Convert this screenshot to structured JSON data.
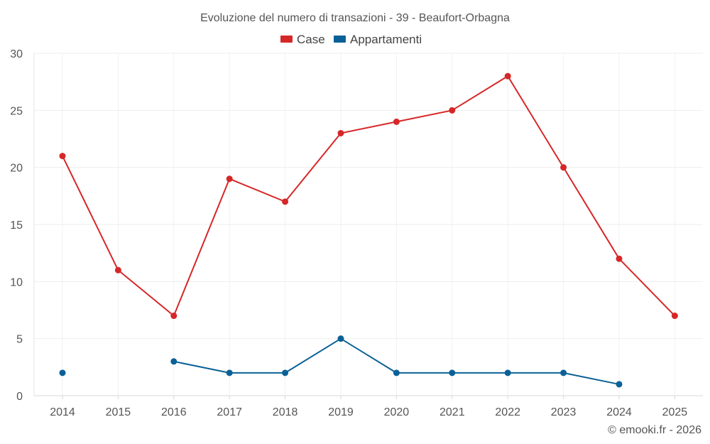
{
  "chart_data": {
    "type": "line",
    "title": "Evoluzione del numero di transazioni - 39 - Beaufort-Orbagna",
    "categories": [
      "2014",
      "2015",
      "2016",
      "2017",
      "2018",
      "2019",
      "2020",
      "2021",
      "2022",
      "2023",
      "2024",
      "2025"
    ],
    "ylim": [
      0,
      30
    ],
    "yticks": [
      0,
      5,
      10,
      15,
      20,
      25,
      30
    ],
    "grid": true,
    "legend": "top-center",
    "series": [
      {
        "name": "Case",
        "color": "#d62728",
        "values": [
          21,
          11,
          7,
          19,
          17,
          23,
          24,
          25,
          28,
          20,
          12,
          7
        ]
      },
      {
        "name": "Appartamenti",
        "color": "#0b6197",
        "values": [
          2,
          null,
          3,
          2,
          2,
          5,
          2,
          2,
          2,
          2,
          1,
          null
        ]
      }
    ],
    "credit": "© emooki.fr - 2026"
  }
}
